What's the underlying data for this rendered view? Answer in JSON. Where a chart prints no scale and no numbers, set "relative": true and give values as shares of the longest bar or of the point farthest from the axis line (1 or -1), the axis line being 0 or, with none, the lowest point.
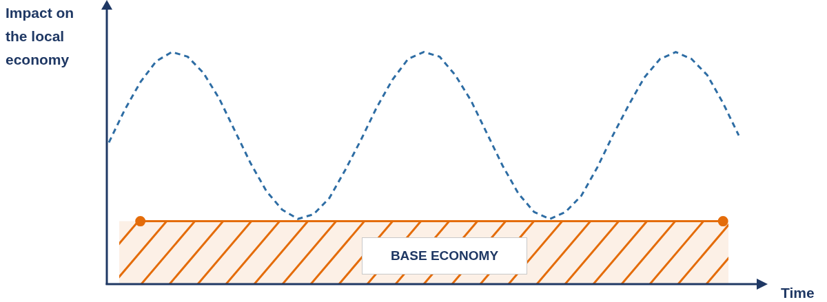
{
  "chart_data": {
    "type": "line",
    "relative": true,
    "ylabel": "Impact on the local economy",
    "xlabel": "Time",
    "grid": false,
    "legend": false,
    "categories": [
      null,
      null,
      null,
      null,
      null,
      null,
      null,
      null,
      null,
      null,
      null,
      null,
      null,
      null,
      null,
      null,
      null,
      null,
      null,
      null,
      null,
      null,
      null,
      null,
      null,
      null,
      null,
      null,
      null,
      null,
      null,
      null,
      null,
      null,
      null,
      null,
      null,
      null,
      null,
      null,
      null
    ],
    "series": [
      {
        "color": "#2e6da4",
        "line_style": "dashed",
        "marker": "none",
        "values": [
          0.61,
          0.75,
          0.87,
          0.96,
          1.0,
          0.98,
          0.91,
          0.8,
          0.66,
          0.52,
          0.4,
          0.32,
          0.28,
          0.3,
          0.37,
          0.49,
          0.62,
          0.76,
          0.88,
          0.97,
          1.0,
          0.98,
          0.9,
          0.79,
          0.65,
          0.51,
          0.39,
          0.31,
          0.28,
          0.31,
          0.38,
          0.5,
          0.64,
          0.77,
          0.89,
          0.97,
          1.0,
          0.97,
          0.9,
          0.78,
          0.64
        ]
      },
      {
        "color": "#e46c0a",
        "line_style": "solid",
        "marker": "circle",
        "values": [
          null,
          null,
          0.27,
          null,
          null,
          null,
          null,
          null,
          null,
          null,
          null,
          null,
          null,
          null,
          null,
          null,
          null,
          null,
          null,
          null,
          null,
          null,
          null,
          null,
          null,
          null,
          null,
          null,
          null,
          null,
          null,
          null,
          null,
          null,
          null,
          null,
          null,
          null,
          null,
          0.27,
          null
        ]
      }
    ],
    "bands": [
      {
        "axis": "y",
        "from": 0,
        "to": 0.27,
        "label": "BASE ECONOMY",
        "color": "#e46c0a"
      }
    ]
  }
}
